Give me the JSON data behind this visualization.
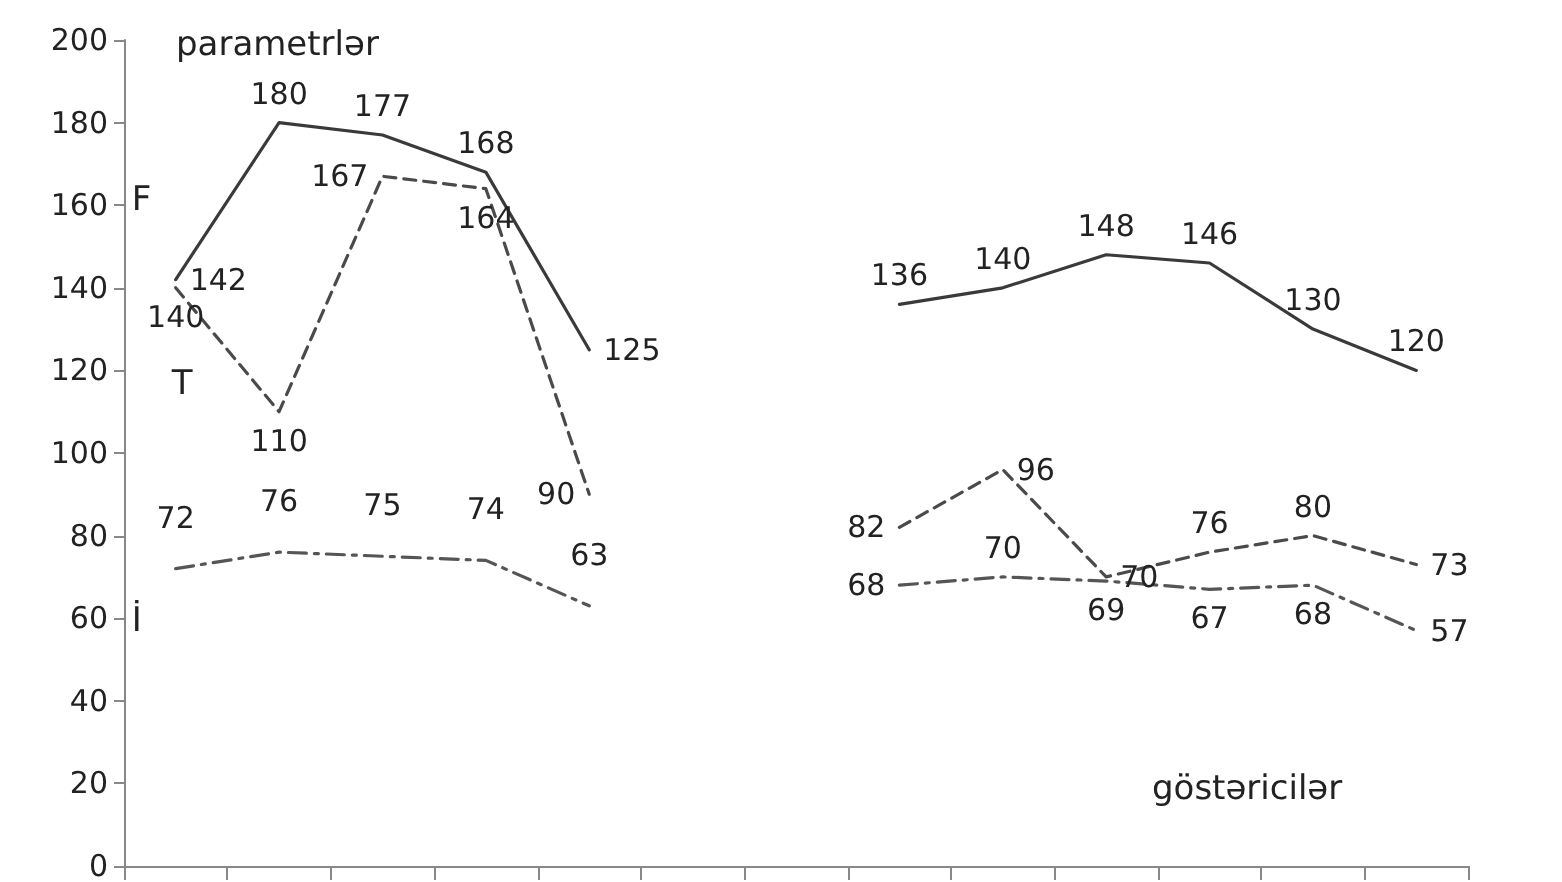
{
  "chart_data": {
    "type": "line",
    "categories": [
      null,
      null,
      null,
      null,
      null,
      null,
      null,
      null,
      null,
      null,
      null,
      null,
      null
    ],
    "series": [
      {
        "name": "F",
        "color": "#3a3a3a",
        "line_style": "solid",
        "values": [
          142,
          180,
          177,
          168,
          125,
          null,
          null,
          136,
          140,
          148,
          146,
          130,
          120
        ]
      },
      {
        "name": "T",
        "color": "#4a4a4a",
        "line_style": "dashed",
        "values": [
          140,
          110,
          167,
          164,
          90,
          null,
          null,
          82,
          96,
          70,
          76,
          80,
          73
        ]
      },
      {
        "name": "İ",
        "color": "#555555",
        "line_style": "dashdot",
        "values": [
          72,
          76,
          75,
          74,
          63,
          null,
          null,
          68,
          70,
          69,
          67,
          68,
          57
        ]
      }
    ],
    "ylim": [
      0,
      200
    ],
    "yticks": [
      0,
      20,
      40,
      60,
      80,
      100,
      120,
      140,
      160,
      180,
      200
    ],
    "annotations": [
      "parametrlər",
      "göstəricilər"
    ],
    "data_labels": true,
    "grid": false,
    "legend": false,
    "marker": "none",
    "tick_labels": "y"
  }
}
